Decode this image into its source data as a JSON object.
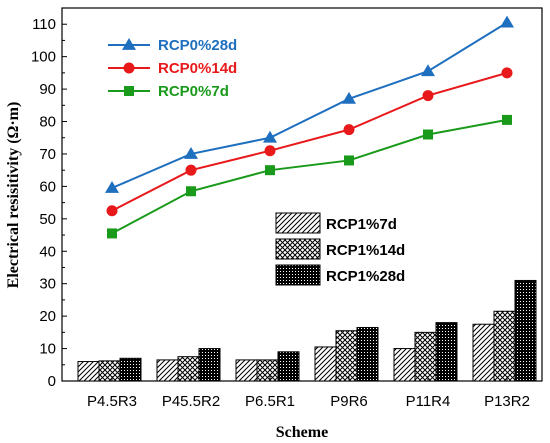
{
  "chart_data": {
    "type": "bar+line",
    "xlabel": "Scheme",
    "ylabel": "Electrical resisitivity (Ω·m)",
    "ylim": [
      0,
      115
    ],
    "yticks": [
      0,
      10,
      20,
      30,
      40,
      50,
      60,
      70,
      80,
      90,
      100,
      110
    ],
    "categories": [
      "P4.5R3",
      "P45.5R2",
      "P6.5R1",
      "P9R6",
      "P11R4",
      "P13R2"
    ],
    "bar_series": [
      {
        "name": "RCP1%7d",
        "pattern": "diagonal-hatch",
        "values": [
          6,
          6.5,
          6.5,
          10.5,
          10,
          17.5
        ]
      },
      {
        "name": "RCP1%14d",
        "pattern": "cross-hatch",
        "values": [
          6.2,
          7.5,
          6.5,
          15.5,
          15,
          21.5
        ]
      },
      {
        "name": "RCP1%28d",
        "pattern": "dots",
        "values": [
          7,
          10,
          9,
          16.5,
          18,
          31
        ]
      }
    ],
    "line_series": [
      {
        "name": "RCP0%28d",
        "color": "#1f6fbf",
        "marker": "triangle",
        "values": [
          59.5,
          70,
          75,
          87,
          95.5,
          110.5
        ]
      },
      {
        "name": "RCP0%14d",
        "color": "#e8191b",
        "marker": "circle",
        "values": [
          52.5,
          65,
          71,
          77.5,
          88,
          95
        ]
      },
      {
        "name": "RCP0%7d",
        "color": "#1a9a1a",
        "marker": "square",
        "values": [
          45.5,
          58.5,
          65,
          68,
          76,
          80.5
        ]
      }
    ],
    "grid": false,
    "line_legend_placement": "top-left",
    "bar_legend_placement": "center-right"
  }
}
